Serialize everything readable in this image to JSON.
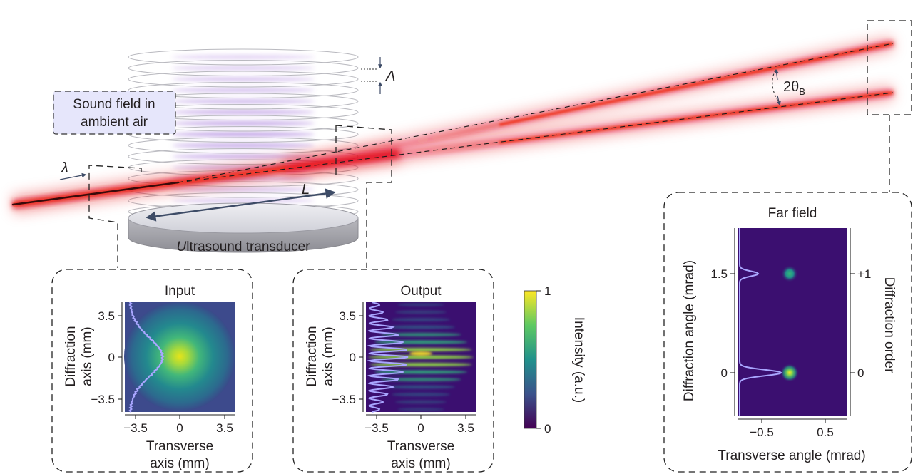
{
  "setup": {
    "sound_field_label_line1": "Sound field in",
    "sound_field_label_line2": "ambient air",
    "wavelength_symbol": "λ",
    "length_symbol": "L",
    "acoustic_period_symbol": "Λ",
    "bragg_angle_label": "2θ",
    "bragg_angle_subscript": "B",
    "transducer_label_italic": "U",
    "transducer_label_rest": "ltrasound transducer"
  },
  "input_panel": {
    "title": "Input",
    "ylabel_line1": "Diffraction",
    "ylabel_line2": "axis (mm)",
    "xlabel_line1": "Transverse",
    "xlabel_line2": "axis (mm)",
    "xticks": [
      "−3.5",
      "0",
      "3.5"
    ],
    "yticks": [
      "3.5",
      "0",
      "−3.5"
    ]
  },
  "output_panel": {
    "title": "Output",
    "ylabel_line1": "Diffraction",
    "ylabel_line2": "axis (mm)",
    "xlabel_line1": "Transverse",
    "xlabel_line2": "axis (mm)",
    "xticks": [
      "−3.5",
      "0",
      "3.5"
    ],
    "yticks": [
      "3.5",
      "0",
      "−3.5"
    ]
  },
  "colorbar": {
    "label": "Intensity (a.u.)",
    "max_label": "1",
    "min_label": "0",
    "colors": [
      "#440154",
      "#3b528b",
      "#21918c",
      "#5ec962",
      "#fde725"
    ]
  },
  "far_field_panel": {
    "title": "Far field",
    "ylabel": "Diffraction angle (mrad)",
    "xlabel": "Transverse angle (mrad)",
    "right_label": "Diffraction order",
    "xticks": [
      "−0.5",
      "0.5"
    ],
    "yticks": [
      "1.5",
      "0"
    ],
    "order_ticks": [
      "+1",
      "0"
    ]
  },
  "colors": {
    "laser": "#e3111a",
    "sound_field": "#8a4fd0",
    "label_box": "#e6e6fb",
    "arrow": "#3d4b66",
    "plot_background": "#3b0f70",
    "profile_line": "#a9a6ff"
  }
}
